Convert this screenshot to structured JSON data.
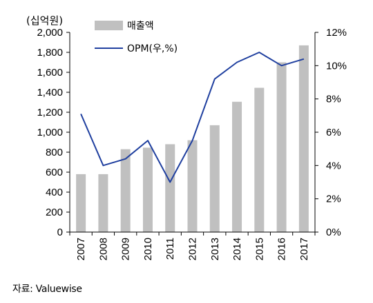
{
  "chart_data": {
    "type": "bar",
    "unit_label": "(십억원)",
    "categories": [
      "2007",
      "2008",
      "2009",
      "2010",
      "2011",
      "2012",
      "2013",
      "2014",
      "2015",
      "2016",
      "2017"
    ],
    "series": [
      {
        "name": "매출액",
        "type": "bar",
        "axis": "left",
        "color": "#c0c0c0",
        "values": [
          580,
          580,
          830,
          845,
          880,
          920,
          1070,
          1305,
          1445,
          1700,
          1870
        ]
      },
      {
        "name": "OPM(우,%)",
        "type": "line",
        "axis": "right",
        "color": "#1f3f9f",
        "values": [
          7.1,
          4.0,
          4.4,
          5.5,
          3.0,
          5.5,
          9.2,
          10.2,
          10.8,
          10.0,
          10.4
        ]
      }
    ],
    "y_left": {
      "min": 0,
      "max": 2000,
      "step": 200,
      "tick_labels": [
        "0",
        "200",
        "400",
        "600",
        "800",
        "1,000",
        "1,200",
        "1,400",
        "1,600",
        "1,800",
        "2,000"
      ]
    },
    "y_right": {
      "min": 0,
      "max": 12,
      "step": 2,
      "tick_labels": [
        "0%",
        "2%",
        "4%",
        "6%",
        "8%",
        "10%",
        "12%"
      ]
    },
    "legend_position": "top-left",
    "grid": false
  },
  "source_text": "자료: Valuewise"
}
